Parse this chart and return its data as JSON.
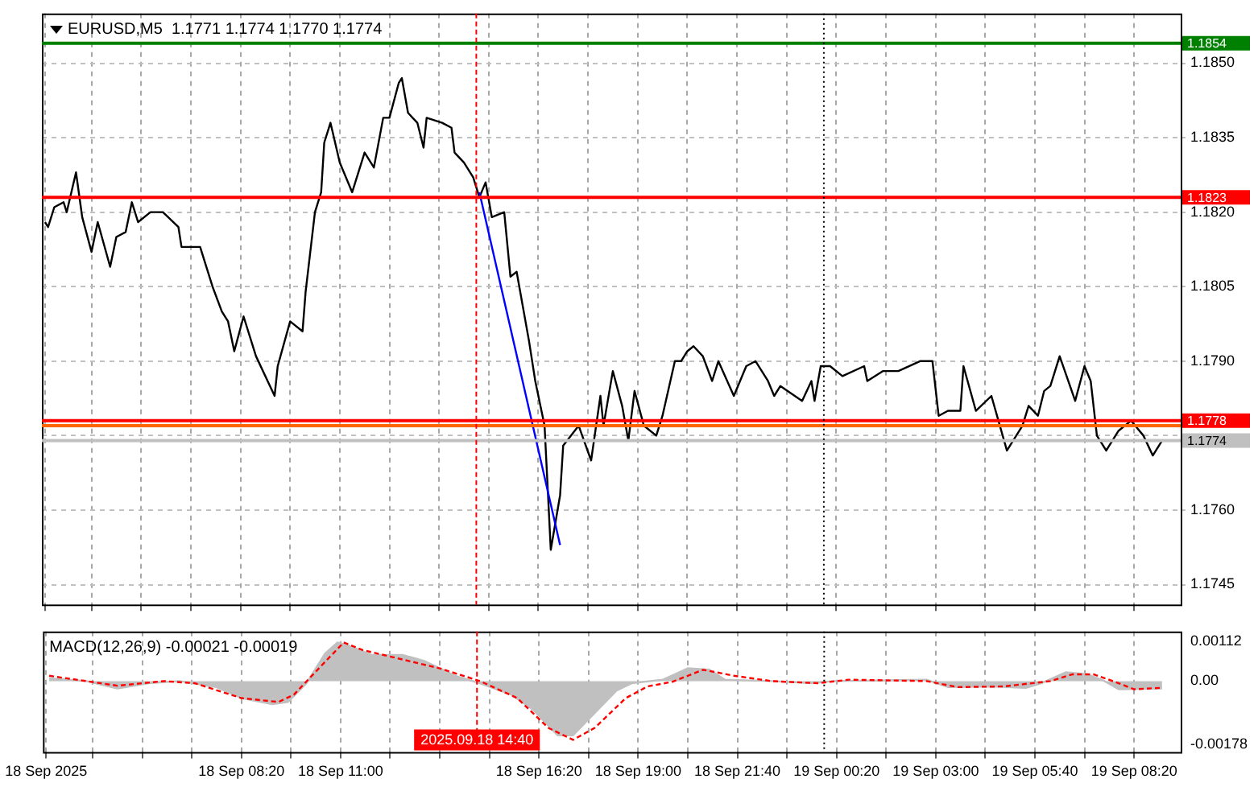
{
  "chart_data": [
    {
      "type": "line",
      "title": "EURUSD,M5  1.1771 1.1774 1.1770 1.1774",
      "xlim": [
        "2025-09-18T03:00",
        "2025-09-19T09:35"
      ],
      "ylim": [
        1.1741,
        1.186
      ],
      "xticks": [
        {
          "value": "2025-09-18T03:05",
          "label": null
        },
        {
          "value": "2025-09-18T04:20",
          "label": null
        },
        {
          "value": "2025-09-18T05:40",
          "label": null
        },
        {
          "value": "2025-09-18T07:00",
          "label": null
        },
        {
          "value": "2025-09-18T08:20",
          "label": null
        },
        {
          "value": "2025-09-18T09:40",
          "label": null
        },
        {
          "value": "2025-09-18T11:00",
          "label": null
        },
        {
          "value": "2025-09-18T12:20",
          "label": null
        },
        {
          "value": "2025-09-18T13:40",
          "label": null
        },
        {
          "value": "2025-09-18T15:00",
          "label": null
        },
        {
          "value": "2025-09-18T16:20",
          "label": null
        },
        {
          "value": "2025-09-18T17:40",
          "label": null
        },
        {
          "value": "2025-09-18T19:00",
          "label": null
        },
        {
          "value": "2025-09-18T20:20",
          "label": null
        },
        {
          "value": "2025-09-18T21:40",
          "label": null
        },
        {
          "value": "2025-09-18T23:00",
          "label": null
        },
        {
          "value": "2025-09-19T00:20",
          "label": null
        },
        {
          "value": "2025-09-19T01:40",
          "label": null
        },
        {
          "value": "2025-09-19T03:00",
          "label": null
        },
        {
          "value": "2025-09-19T04:20",
          "label": null
        },
        {
          "value": "2025-09-19T05:40",
          "label": null
        },
        {
          "value": "2025-09-19T07:00",
          "label": null
        },
        {
          "value": "2025-09-19T08:20",
          "label": null
        }
      ],
      "yticks": [
        {
          "value": 1.1745,
          "label": "1.1745"
        },
        {
          "value": 1.176,
          "label": "1.1760"
        },
        {
          "value": 1.1775,
          "label": null
        },
        {
          "value": 1.179,
          "label": "1.1790"
        },
        {
          "value": 1.1805,
          "label": "1.1805"
        },
        {
          "value": 1.182,
          "label": "1.1820"
        },
        {
          "value": 1.1835,
          "label": "1.1835"
        },
        {
          "value": 1.185,
          "label": "1.1850"
        }
      ],
      "grid": true,
      "marker": "none",
      "tick_labels": "y",
      "series": [
        {
          "color": "#000000",
          "x": [
            "2025-09-18T03:05",
            "2025-09-18T03:10",
            "2025-09-18T03:20",
            "2025-09-18T03:35",
            "2025-09-18T03:40",
            "2025-09-18T03:55",
            "2025-09-18T04:05",
            "2025-09-18T04:20",
            "2025-09-18T04:30",
            "2025-09-18T04:50",
            "2025-09-18T05:00",
            "2025-09-18T05:15",
            "2025-09-18T05:25",
            "2025-09-18T05:35",
            "2025-09-18T05:55",
            "2025-09-18T06:15",
            "2025-09-18T06:40",
            "2025-09-18T06:45",
            "2025-09-18T07:05",
            "2025-09-18T07:15",
            "2025-09-18T07:35",
            "2025-09-18T07:50",
            "2025-09-18T08:00",
            "2025-09-18T08:10",
            "2025-09-18T08:25",
            "2025-09-18T08:45",
            "2025-09-18T09:15",
            "2025-09-18T09:20",
            "2025-09-18T09:40",
            "2025-09-18T10:00",
            "2025-09-18T10:05",
            "2025-09-18T10:20",
            "2025-09-18T10:30",
            "2025-09-18T10:35",
            "2025-09-18T10:45",
            "2025-09-18T11:00",
            "2025-09-18T11:20",
            "2025-09-18T11:40",
            "2025-09-18T11:55",
            "2025-09-18T12:10",
            "2025-09-18T12:20",
            "2025-09-18T12:35",
            "2025-09-18T12:40",
            "2025-09-18T12:50",
            "2025-09-18T13:05",
            "2025-09-18T13:15",
            "2025-09-18T13:20",
            "2025-09-18T13:45",
            "2025-09-18T14:00",
            "2025-09-18T14:05",
            "2025-09-18T14:20",
            "2025-09-18T14:35",
            "2025-09-18T14:45",
            "2025-09-18T14:55",
            "2025-09-18T15:05",
            "2025-09-18T15:25",
            "2025-09-18T15:35",
            "2025-09-18T15:45",
            "2025-09-18T16:05",
            "2025-09-18T16:15",
            "2025-09-18T16:30",
            "2025-09-18T16:40",
            "2025-09-18T16:55",
            "2025-09-18T17:00",
            "2025-09-18T17:25",
            "2025-09-18T17:45",
            "2025-09-18T18:00",
            "2025-09-18T18:05",
            "2025-09-18T18:20",
            "2025-09-18T18:35",
            "2025-09-18T18:45",
            "2025-09-18T18:55",
            "2025-09-18T19:10",
            "2025-09-18T19:30",
            "2025-09-18T19:40",
            "2025-09-18T20:00",
            "2025-09-18T20:10",
            "2025-09-18T20:20",
            "2025-09-18T20:30",
            "2025-09-18T20:45",
            "2025-09-18T21:00",
            "2025-09-18T21:10",
            "2025-09-18T21:35",
            "2025-09-18T21:55",
            "2025-09-18T22:10",
            "2025-09-18T22:30",
            "2025-09-18T22:40",
            "2025-09-18T22:50",
            "2025-09-18T23:25",
            "2025-09-18T23:40",
            "2025-09-18T23:45",
            "2025-09-18T23:55",
            "2025-09-19T00:10",
            "2025-09-19T00:30",
            "2025-09-19T01:05",
            "2025-09-19T01:10",
            "2025-09-19T01:35",
            "2025-09-19T02:00",
            "2025-09-19T02:35",
            "2025-09-19T02:55",
            "2025-09-19T03:05",
            "2025-09-19T03:20",
            "2025-09-19T03:40",
            "2025-09-19T03:45",
            "2025-09-19T04:05",
            "2025-09-19T04:30",
            "2025-09-19T04:55",
            "2025-09-19T05:20",
            "2025-09-19T05:30",
            "2025-09-19T05:45",
            "2025-09-19T05:55",
            "2025-09-19T06:05",
            "2025-09-19T06:20",
            "2025-09-19T06:45",
            "2025-09-19T07:00",
            "2025-09-19T07:10",
            "2025-09-19T07:20",
            "2025-09-19T07:35",
            "2025-09-19T07:55",
            "2025-09-19T08:15",
            "2025-09-19T08:35",
            "2025-09-19T08:50",
            "2025-09-19T09:05"
          ],
          "values": [
            1.1818,
            1.1817,
            1.1821,
            1.1822,
            1.182,
            1.1828,
            1.1819,
            1.1812,
            1.1818,
            1.1809,
            1.1815,
            1.1816,
            1.1822,
            1.1818,
            1.182,
            1.182,
            1.1817,
            1.1813,
            1.1813,
            1.1813,
            1.1805,
            1.18,
            1.1798,
            1.1792,
            1.1799,
            1.1791,
            1.1783,
            1.1789,
            1.1798,
            1.1796,
            1.1804,
            1.182,
            1.1824,
            1.1834,
            1.1838,
            1.183,
            1.1824,
            1.1832,
            1.1829,
            1.1839,
            1.1839,
            1.1846,
            1.1847,
            1.184,
            1.1838,
            1.1833,
            1.1839,
            1.1838,
            1.1837,
            1.1832,
            1.183,
            1.1827,
            1.1823,
            1.1826,
            1.1819,
            1.182,
            1.1807,
            1.1808,
            1.1794,
            1.1786,
            1.1777,
            1.1752,
            1.1763,
            1.1773,
            1.1777,
            1.177,
            1.1783,
            1.1777,
            1.1788,
            1.1781,
            1.1774,
            1.1784,
            1.1777,
            1.1775,
            1.1779,
            1.179,
            1.179,
            1.1792,
            1.1793,
            1.1791,
            1.1786,
            1.179,
            1.1783,
            1.1789,
            1.179,
            1.1786,
            1.1783,
            1.1785,
            1.1782,
            1.1786,
            1.1782,
            1.1789,
            1.1789,
            1.1787,
            1.1789,
            1.1786,
            1.1788,
            1.1788,
            1.179,
            1.179,
            1.1779,
            1.178,
            1.178,
            1.1789,
            1.178,
            1.1783,
            1.1772,
            1.1777,
            1.1781,
            1.1779,
            1.1784,
            1.1785,
            1.1791,
            1.1782,
            1.1789,
            1.1786,
            1.1775,
            1.1772,
            1.1776,
            1.1778,
            1.1775,
            1.1771,
            1.1774
          ]
        },
        {
          "color": "#0000ff",
          "x": [
            "2025-09-18T14:45",
            "2025-09-18T16:55"
          ],
          "values": [
            1.1824,
            1.1753
          ]
        }
      ],
      "ref_lines": [
        {
          "axis": "y",
          "value": 1.1854,
          "label": "1.1854",
          "color": "#008000"
        },
        {
          "axis": "y",
          "value": 1.1823,
          "label": "1.1823",
          "color": "#ff0000"
        },
        {
          "axis": "y",
          "value": 1.1778,
          "label": "1.1778",
          "color": "#ff0000"
        },
        {
          "axis": "y",
          "value": 1.1777,
          "color": "#ff6600"
        },
        {
          "axis": "y",
          "value": 1.1774,
          "label": "1.1774",
          "color": "#c0c0c0"
        },
        {
          "axis": "x",
          "value": "2025-09-18T14:40",
          "color": "#ff0000",
          "line_style": "dashed"
        },
        {
          "axis": "x",
          "value": "2025-09-19T00:00",
          "color": "#000000",
          "line_style": "dotted"
        }
      ]
    },
    {
      "type": "line",
      "title": "MACD(12,26,9) -0.00021 -0.00019",
      "xlim": [
        "2025-09-18T03:00",
        "2025-09-19T09:35"
      ],
      "ylim": [
        -0.002,
        0.0014
      ],
      "xticks": [
        {
          "value": "2025-09-18T03:05",
          "label": "18 Sep 2025"
        },
        {
          "value": "2025-09-18T04:20",
          "label": null
        },
        {
          "value": "2025-09-18T05:40",
          "label": null
        },
        {
          "value": "2025-09-18T07:00",
          "label": null
        },
        {
          "value": "2025-09-18T08:20",
          "label": "18 Sep 08:20"
        },
        {
          "value": "2025-09-18T09:40",
          "label": null
        },
        {
          "value": "2025-09-18T11:00",
          "label": "18 Sep 11:00"
        },
        {
          "value": "2025-09-18T12:20",
          "label": null
        },
        {
          "value": "2025-09-18T13:40",
          "label": null
        },
        {
          "value": "2025-09-18T15:00",
          "label": null
        },
        {
          "value": "2025-09-18T16:20",
          "label": "18 Sep 16:20"
        },
        {
          "value": "2025-09-18T17:40",
          "label": null
        },
        {
          "value": "2025-09-18T19:00",
          "label": "18 Sep 19:00"
        },
        {
          "value": "2025-09-18T20:20",
          "label": null
        },
        {
          "value": "2025-09-18T21:40",
          "label": "18 Sep 21:40"
        },
        {
          "value": "2025-09-18T23:00",
          "label": null
        },
        {
          "value": "2025-09-19T00:20",
          "label": "19 Sep 00:20"
        },
        {
          "value": "2025-09-19T01:40",
          "label": null
        },
        {
          "value": "2025-09-19T03:00",
          "label": "19 Sep 03:00"
        },
        {
          "value": "2025-09-19T04:20",
          "label": null
        },
        {
          "value": "2025-09-19T05:40",
          "label": "19 Sep 05:40"
        },
        {
          "value": "2025-09-19T07:00",
          "label": null
        },
        {
          "value": "2025-09-19T08:20",
          "label": "19 Sep 08:20"
        }
      ],
      "yticks": [
        {
          "value": -0.00178,
          "label": "-0.00178"
        },
        {
          "value": 0,
          "label": "0.00"
        },
        {
          "value": 0.00112,
          "label": "0.00112"
        }
      ],
      "grid": "x",
      "marker": "none",
      "series": [
        {
          "type": "area",
          "color": "#c0c0c0",
          "x": [
            "2025-09-18T03:10",
            "2025-09-18T04:10",
            "2025-09-18T05:00",
            "2025-09-18T05:50",
            "2025-09-18T06:40",
            "2025-09-18T07:40",
            "2025-09-18T08:20",
            "2025-09-18T09:10",
            "2025-09-18T09:35",
            "2025-09-18T10:05",
            "2025-09-18T10:35",
            "2025-09-18T10:55",
            "2025-09-18T11:15",
            "2025-09-18T11:50",
            "2025-09-18T12:40",
            "2025-09-18T13:15",
            "2025-09-18T14:05",
            "2025-09-18T14:45",
            "2025-09-18T15:35",
            "2025-09-18T16:10",
            "2025-09-18T16:50",
            "2025-09-18T17:15",
            "2025-09-18T17:50",
            "2025-09-18T18:25",
            "2025-09-18T18:50",
            "2025-09-18T19:40",
            "2025-09-18T20:20",
            "2025-09-18T20:55",
            "2025-09-18T21:20",
            "2025-09-18T22:35",
            "2025-09-18T23:40",
            "2025-09-19T00:15",
            "2025-09-19T01:40",
            "2025-09-19T02:45",
            "2025-09-19T03:20",
            "2025-09-19T04:35",
            "2025-09-19T05:25",
            "2025-09-19T05:50",
            "2025-09-19T06:30",
            "2025-09-19T07:05",
            "2025-09-19T07:30",
            "2025-09-19T07:55",
            "2025-09-19T09:05"
          ],
          "values": [
            8e-05,
            0,
            -0.00021,
            -6e-05,
            0,
            -0.00017,
            -0.00048,
            -0.00065,
            -0.00059,
            -6e-05,
            0.00078,
            0.00109,
            0.00099,
            0.00074,
            0.00074,
            0.00057,
            0.00015,
            -6e-05,
            -0.00038,
            -0.0008,
            -0.00153,
            -0.00153,
            -0.0009,
            -0.00027,
            -6e-05,
            4e-05,
            0.00036,
            0.00032,
            4e-05,
            0,
            -6e-05,
            0,
            2e-05,
            4e-05,
            -0.00017,
            -0.00015,
            -0.00019,
            -6e-05,
            0.00025,
            0.00019,
            2e-05,
            -0.00023,
            -0.00021
          ]
        },
        {
          "type": "line",
          "color": "#ff0000",
          "line_style": "dashed",
          "x": [
            "2025-09-18T03:10",
            "2025-09-18T04:10",
            "2025-09-18T05:00",
            "2025-09-18T06:15",
            "2025-09-18T07:05",
            "2025-09-18T08:20",
            "2025-09-18T09:20",
            "2025-09-18T09:45",
            "2025-09-18T10:25",
            "2025-09-18T11:05",
            "2025-09-18T11:35",
            "2025-09-18T12:40",
            "2025-09-18T13:40",
            "2025-09-18T14:45",
            "2025-09-18T15:45",
            "2025-09-18T16:35",
            "2025-09-18T17:15",
            "2025-09-18T17:50",
            "2025-09-18T18:40",
            "2025-09-18T19:15",
            "2025-09-18T19:55",
            "2025-09-18T20:45",
            "2025-09-18T21:35",
            "2025-09-18T22:35",
            "2025-09-18T23:50",
            "2025-09-19T00:40",
            "2025-09-19T02:45",
            "2025-09-19T03:35",
            "2025-09-19T04:50",
            "2025-09-19T06:05",
            "2025-09-19T06:40",
            "2025-09-19T07:15",
            "2025-09-19T07:55",
            "2025-09-19T08:20",
            "2025-09-19T09:05"
          ],
          "values": [
            0.00015,
            0,
            -0.00013,
            0,
            -6e-05,
            -0.00048,
            -0.00059,
            -0.00038,
            0.00036,
            0.00109,
            0.00088,
            0.00061,
            0.00036,
            0,
            -0.00048,
            -0.00132,
            -0.00166,
            -0.00132,
            -0.00048,
            -0.00015,
            -2e-05,
            0.00032,
            0.00015,
            0,
            -6e-05,
            4e-05,
            0,
            -0.00017,
            -0.00015,
            0,
            0.00019,
            0.00019,
            -6e-05,
            -0.00023,
            -0.00019
          ]
        }
      ],
      "ref_lines": [
        {
          "axis": "x",
          "value": "2025-09-18T14:40",
          "label": "2025.09.18 14:40",
          "color": "#ff0000",
          "line_style": "dashed"
        },
        {
          "axis": "x",
          "value": "2025-09-19T00:00",
          "color": "#000000",
          "line_style": "dotted"
        }
      ]
    }
  ]
}
